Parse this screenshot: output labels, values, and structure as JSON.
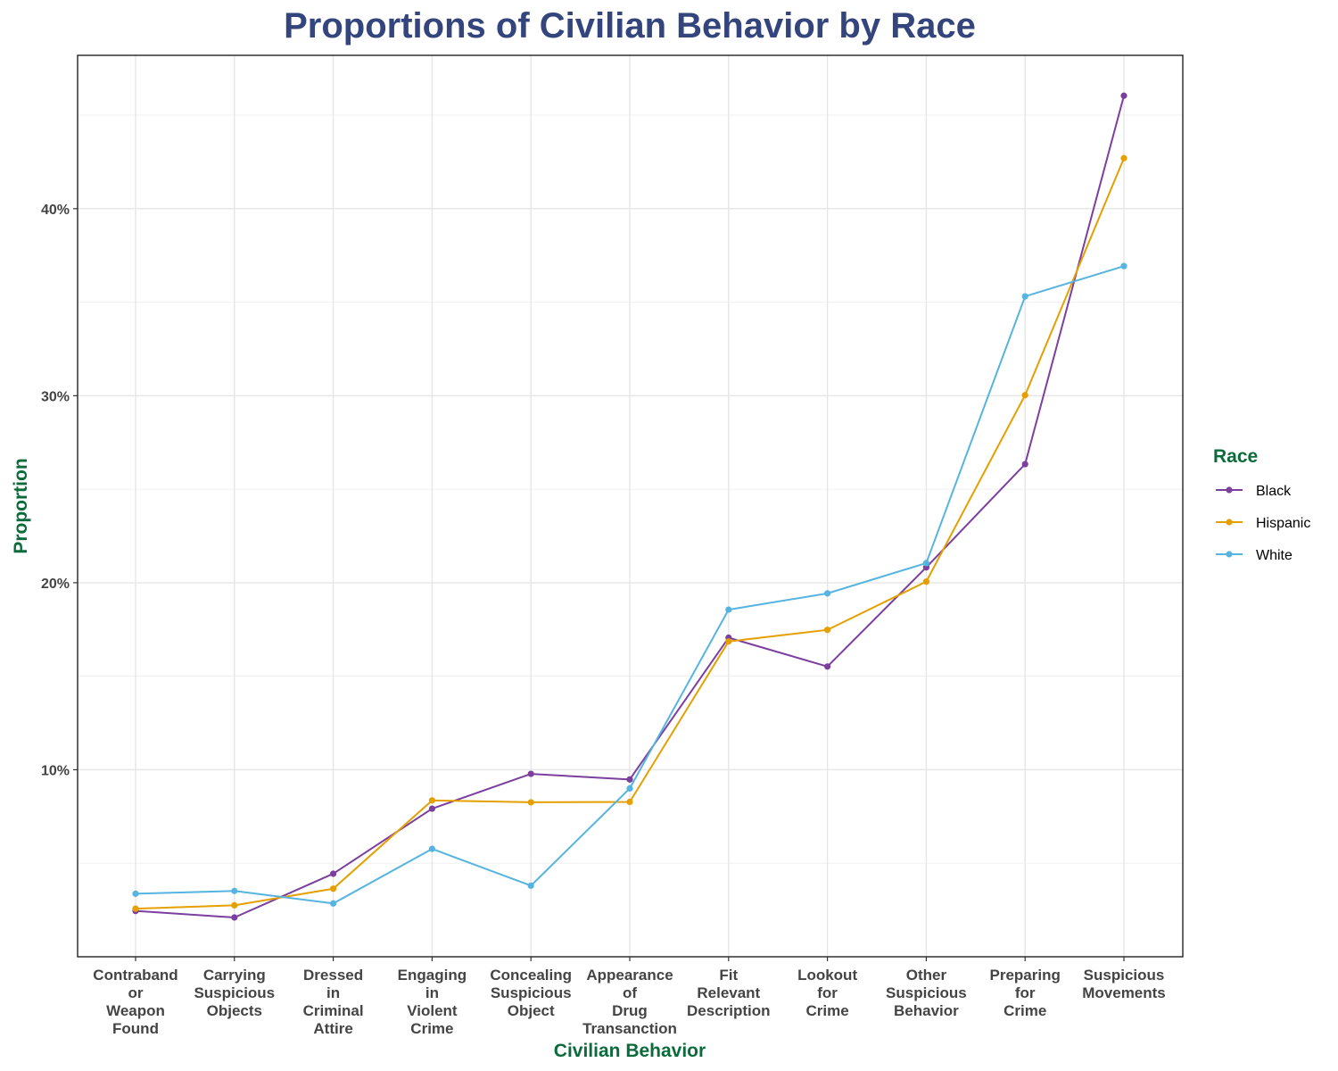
{
  "chart_data": {
    "type": "line",
    "title": "Proportions of Civilian Behavior by Race",
    "xlabel": "Civilian Behavior",
    "ylabel": "Proportion",
    "categories": [
      [
        "Contraband",
        "or",
        "Weapon",
        "Found"
      ],
      [
        "Carrying",
        "Suspicious",
        "Objects"
      ],
      [
        "Dressed",
        "in",
        "Criminal",
        "Attire"
      ],
      [
        "Engaging",
        "in",
        "Violent",
        "Crime"
      ],
      [
        "Concealing",
        "Suspicious",
        "Object"
      ],
      [
        "Appearance",
        "of",
        "Drug",
        "Transanction"
      ],
      [
        "Fit",
        "Relevant",
        "Description"
      ],
      [
        "Lookout",
        "for",
        "Crime"
      ],
      [
        "Other",
        "Suspicious",
        "Behavior"
      ],
      [
        "Preparing",
        "for",
        "Crime"
      ],
      [
        "Suspicious",
        "Movements"
      ]
    ],
    "yticks": [
      0.1,
      0.2,
      0.3,
      0.4
    ],
    "ytick_labels": [
      "10%",
      "20%",
      "30%",
      "40%"
    ],
    "ylim": [
      0.0,
      0.482
    ],
    "grid": true,
    "legend": {
      "title": "Race",
      "position": "right"
    },
    "series": [
      {
        "name": "Black",
        "color": "#7b3fa0",
        "values": [
          0.0245,
          0.021,
          0.0444,
          0.0792,
          0.0978,
          0.0948,
          0.1706,
          0.1552,
          0.2082,
          0.2634,
          0.4604
        ]
      },
      {
        "name": "Hispanic",
        "color": "#e69f00",
        "values": [
          0.0257,
          0.0275,
          0.0364,
          0.0836,
          0.0826,
          0.0828,
          0.1686,
          0.1748,
          0.2006,
          0.3003,
          0.427
        ]
      },
      {
        "name": "White",
        "color": "#56b4e0",
        "values": [
          0.0337,
          0.0352,
          0.0285,
          0.0577,
          0.038,
          0.09,
          0.1856,
          0.1943,
          0.2105,
          0.3531,
          0.3693
        ]
      }
    ]
  }
}
